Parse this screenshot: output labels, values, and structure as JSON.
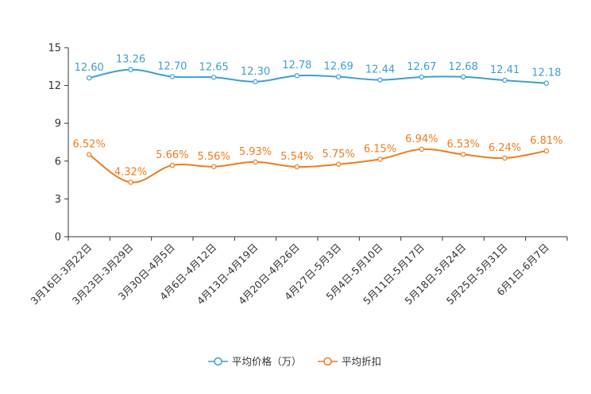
{
  "chart_data": {
    "type": "line",
    "title": "",
    "xlabel": "",
    "ylabel": "",
    "ylim": [
      0,
      15
    ],
    "yticks": [
      "0",
      "3",
      "6",
      "9",
      "12",
      "15"
    ],
    "grid": false,
    "legend": "bottom-center",
    "categories": [
      "3月16日-3月22日",
      "3月23日-3月29日",
      "3月30日-4月5日",
      "4月6日-4月12日",
      "4月13日-4月19日",
      "4月20日-4月26日",
      "4月27日-5月3日",
      "5月4日-5月10日",
      "5月11日-5月17日",
      "5月18日-5月24日",
      "5月25日-5月31日",
      "6月1日-6月7日"
    ],
    "series": [
      {
        "name": "平均价格（万）",
        "color": "#3d9fd0",
        "values": [
          12.6,
          13.26,
          12.7,
          12.65,
          12.3,
          12.78,
          12.69,
          12.44,
          12.67,
          12.68,
          12.41,
          12.18
        ],
        "labels": [
          "12.60",
          "13.26",
          "12.70",
          "12.65",
          "12.30",
          "12.78",
          "12.69",
          "12.44",
          "12.67",
          "12.68",
          "12.41",
          "12.18"
        ]
      },
      {
        "name": "平均折扣",
        "color": "#f07b1c",
        "values": [
          6.52,
          4.32,
          5.66,
          5.56,
          5.93,
          5.54,
          5.75,
          6.15,
          6.94,
          6.53,
          6.24,
          6.81
        ],
        "labels": [
          "6.52%",
          "4.32%",
          "5.66%",
          "5.56%",
          "5.93%",
          "5.54%",
          "5.75%",
          "6.15%",
          "6.94%",
          "6.53%",
          "6.24%",
          "6.81%"
        ]
      }
    ]
  }
}
